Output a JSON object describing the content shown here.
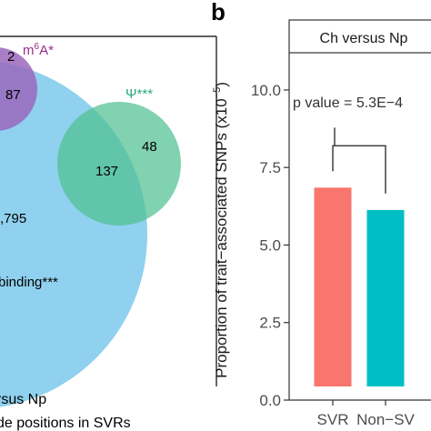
{
  "venn": {
    "labels": {
      "count_m6a_only": "2",
      "m6a_name": "m",
      "m6a_sup": "6",
      "m6a_tail": "A*",
      "count_m6a_overlap": "87",
      "psi_name": "Ψ***",
      "count_psi_overlap": "137",
      "count_psi_only": "48",
      "count_main": ",795",
      "main_name": "binding***",
      "caption_line1": "rsus Np",
      "caption_line2": "de positions in SVRs"
    },
    "colors": {
      "main": "#8fd1ee",
      "m6a": "#9a67bd",
      "psi": "#4fc192",
      "m6a_text": "#9b2d86",
      "psi_text": "#27a879"
    }
  },
  "panel_b": {
    "letter": "b",
    "strip_label": "Ch versus Np",
    "annotation": "p value = 5.3E−4"
  },
  "chart_data": {
    "type": "bar",
    "categories": [
      "SVR",
      "Non−SV"
    ],
    "values": [
      6.85,
      6.13
    ],
    "colors": [
      "#f8766d",
      "#00bfc4"
    ],
    "ylabel": "Proportion of trait−associated SNPs (x10",
    "ylabel_sup": "−5",
    "ylabel_tail": ")",
    "ylim": [
      0,
      11.2
    ],
    "yticks": [
      0.0,
      2.5,
      5.0,
      7.5,
      10.0
    ],
    "ytick_labels": [
      "0.0",
      "2.5",
      "5.0",
      "7.5",
      "10.0"
    ]
  }
}
